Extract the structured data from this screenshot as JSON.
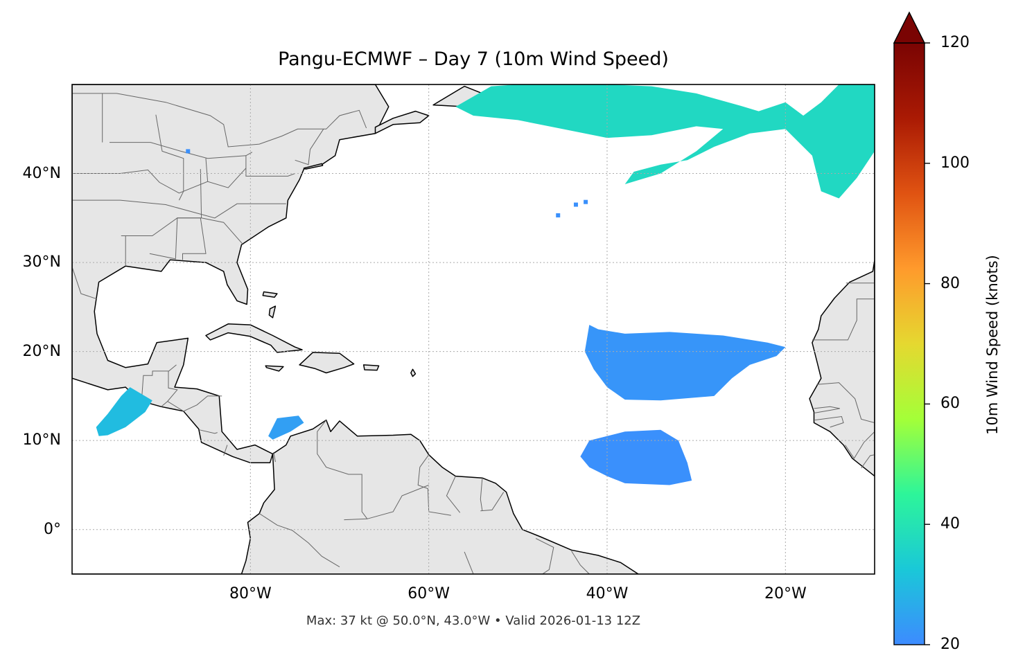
{
  "title": "Pangu-ECMWF – Day 7 (10m Wind Speed)",
  "footer": "Max: 37 kt @ 50.0°N, 43.0°W • Valid 2026-01-13 12Z",
  "map": {
    "lon_range": [
      -100,
      -10
    ],
    "lat_range": [
      -5,
      50
    ],
    "gridlines": true,
    "land_color": "#e6e6e6",
    "coast_color": "#000000",
    "border_color": "#666666",
    "x_ticks": [
      {
        "lon": -80,
        "label": "80°W"
      },
      {
        "lon": -60,
        "label": "60°W"
      },
      {
        "lon": -40,
        "label": "40°W"
      },
      {
        "lon": -20,
        "label": "20°W"
      }
    ],
    "y_ticks": [
      {
        "lat": 40,
        "label": "40°N"
      },
      {
        "lat": 30,
        "label": "30°N"
      },
      {
        "lat": 20,
        "label": "20°N"
      },
      {
        "lat": 10,
        "label": "10°N"
      },
      {
        "lat": 0,
        "label": "0°"
      }
    ]
  },
  "colorbar": {
    "label": "10m Wind Speed (knots)",
    "min": 20,
    "max": 120,
    "extend": "max",
    "ticks": [
      {
        "value": 20,
        "label": "20"
      },
      {
        "value": 40,
        "label": "40"
      },
      {
        "value": 60,
        "label": "60"
      },
      {
        "value": 80,
        "label": "80"
      },
      {
        "value": 100,
        "label": "100"
      },
      {
        "value": 120,
        "label": "120"
      }
    ],
    "colors": [
      "#3d8bff",
      "#1ac8d8",
      "#2df59a",
      "#a4ff38",
      "#e5d830",
      "#ff9a2c",
      "#e05312",
      "#aa1a04",
      "#7a0403"
    ]
  },
  "wind_regions": [
    {
      "name": "north-atlantic-jet",
      "speed_kt": 37,
      "points": [
        [
          -57,
          47.5
        ],
        [
          -53,
          49.8
        ],
        [
          -50,
          50
        ],
        [
          -45,
          50
        ],
        [
          -40,
          50
        ],
        [
          -35,
          49.8
        ],
        [
          -30,
          49
        ],
        [
          -25,
          47.6
        ],
        [
          -23,
          47
        ],
        [
          -20,
          48
        ],
        [
          -18,
          46.5
        ],
        [
          -16,
          48
        ],
        [
          -14,
          50
        ],
        [
          -10,
          50
        ],
        [
          -10,
          42.5
        ],
        [
          -12,
          39.5
        ],
        [
          -14,
          37.2
        ],
        [
          -16,
          38
        ],
        [
          -17,
          42
        ],
        [
          -20,
          45
        ],
        [
          -24,
          44.5
        ],
        [
          -28,
          43
        ],
        [
          -31,
          41.5
        ],
        [
          -34,
          41
        ],
        [
          -37,
          40.2
        ],
        [
          -38,
          38.8
        ],
        [
          -34,
          40
        ],
        [
          -30,
          42.5
        ],
        [
          -27,
          45
        ],
        [
          -30,
          45.3
        ],
        [
          -35,
          44.3
        ],
        [
          -40,
          44
        ],
        [
          -45,
          45
        ],
        [
          -50,
          46
        ],
        [
          -55,
          46.5
        ],
        [
          -57,
          47.5
        ]
      ]
    },
    {
      "name": "trade-winds-north",
      "speed_kt": 22,
      "points": [
        [
          -42,
          23
        ],
        [
          -41,
          22.5
        ],
        [
          -38,
          22
        ],
        [
          -33,
          22.2
        ],
        [
          -27,
          21.8
        ],
        [
          -22,
          21
        ],
        [
          -20,
          20.5
        ],
        [
          -21,
          19.5
        ],
        [
          -24,
          18.5
        ],
        [
          -26,
          17
        ],
        [
          -28,
          15
        ],
        [
          -34,
          14.5
        ],
        [
          -38,
          14.6
        ],
        [
          -40,
          16
        ],
        [
          -41.5,
          18
        ],
        [
          -42.5,
          20
        ],
        [
          -42,
          23
        ]
      ]
    },
    {
      "name": "trade-winds-south",
      "speed_kt": 21,
      "points": [
        [
          -42,
          10
        ],
        [
          -38,
          11
        ],
        [
          -34,
          11.2
        ],
        [
          -32,
          10
        ],
        [
          -31,
          7.5
        ],
        [
          -30.5,
          5.5
        ],
        [
          -33,
          5
        ],
        [
          -38,
          5.2
        ],
        [
          -40,
          6
        ],
        [
          -42,
          7
        ],
        [
          -43,
          8.2
        ],
        [
          -42,
          10
        ]
      ]
    },
    {
      "name": "tehuantepec-jet",
      "speed_kt": 30,
      "points": [
        [
          -93.5,
          16
        ],
        [
          -91,
          14.5
        ],
        [
          -91.8,
          13.2
        ],
        [
          -94,
          11.5
        ],
        [
          -96,
          10.6
        ],
        [
          -97,
          10.5
        ],
        [
          -97.3,
          11.5
        ],
        [
          -96,
          13
        ],
        [
          -94.5,
          15
        ],
        [
          -93.5,
          16
        ]
      ]
    },
    {
      "name": "caribbean-low-level-jet",
      "speed_kt": 24,
      "points": [
        [
          -77,
          12.5
        ],
        [
          -74.6,
          12.8
        ],
        [
          -74,
          12
        ],
        [
          -75.5,
          11
        ],
        [
          -77.5,
          10.1
        ],
        [
          -78,
          10.5
        ],
        [
          -77,
          12.5
        ]
      ]
    }
  ],
  "wind_specks": [
    {
      "name": "lake-michigan",
      "speed_kt": 21,
      "lon": -87,
      "lat": 42.5
    },
    {
      "name": "mid-atlantic-1",
      "speed_kt": 21,
      "lon": -45.5,
      "lat": 35.3
    },
    {
      "name": "mid-atlantic-2",
      "speed_kt": 21,
      "lon": -43.5,
      "lat": 36.5
    },
    {
      "name": "mid-atlantic-3",
      "speed_kt": 21,
      "lon": -42.4,
      "lat": 36.8
    }
  ]
}
